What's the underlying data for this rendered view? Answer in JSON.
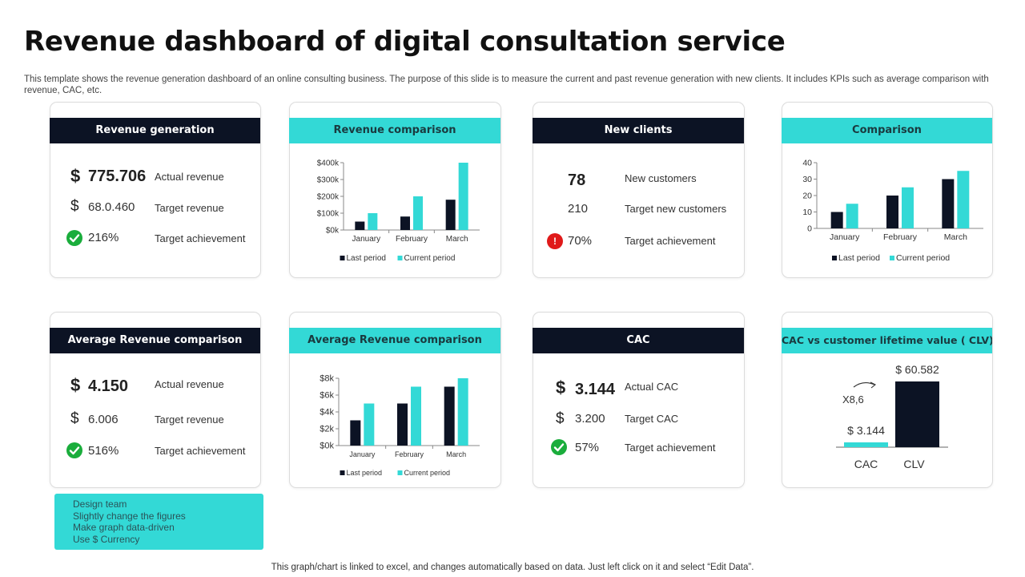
{
  "page": {
    "title": "Revenue dashboard of digital consultation service",
    "subtitle": "This template shows the revenue generation dashboard of an online consulting business. The purpose of this slide is to measure the current and past revenue generation with new clients. It includes KPIs such as average comparison with revenue, CAC, etc.",
    "footer": "This graph/chart is linked to excel, and changes automatically based on data. Just left click on it and select “Edit Data”."
  },
  "colors": {
    "dark": "#0c1324",
    "teal": "#33d9d6",
    "green": "#1aad3c",
    "red": "#e01a1a"
  },
  "revenue_generation": {
    "header": "Revenue generation",
    "actual_symbol": "$",
    "actual_value": "775.706",
    "actual_label": "Actual revenue",
    "target_symbol": "$",
    "target_value": "68.0.460",
    "target_label": "Target  revenue",
    "achievement_value": "216%",
    "achievement_label": "Target  achievement"
  },
  "new_clients": {
    "header": "New clients",
    "customers_value": "78",
    "customers_label": "New customers",
    "target_value": "210",
    "target_label": "Target  new customers",
    "alert_icon_text": "!",
    "achievement_value": "70%",
    "achievement_label": "Target  achievement"
  },
  "avg_revenue_kpi": {
    "header": "Average Revenue comparison",
    "actual_symbol": "$",
    "actual_value": "4.150",
    "actual_label": "Actual revenue",
    "target_symbol": "$",
    "target_value": "6.006",
    "target_label": "Target  revenue",
    "achievement_value": "516%",
    "achievement_label": "Target  achievement"
  },
  "cac": {
    "header": "CAC",
    "actual_symbol": "$",
    "actual_value": "3.144",
    "actual_label": "Actual CAC",
    "target_symbol": "$",
    "target_value": "3.200",
    "target_label": "Target  CAC",
    "achievement_value": "57%",
    "achievement_label": "Target  achievement"
  },
  "chart_headers": {
    "revenue_comparison": "Revenue comparison",
    "comparison": "Comparison",
    "avg_revenue_comparison": "Average Revenue comparison",
    "cac_vs_clv": "CAC vs customer lifetime value ( CLV)"
  },
  "note": {
    "lines": [
      "Design team",
      "Slightly change the figures",
      "Make graph data-driven",
      "Use $ Currency"
    ]
  },
  "chart_data": [
    {
      "id": "revenue_comparison",
      "type": "bar",
      "title": "Revenue comparison",
      "categories": [
        "January",
        "February",
        "March"
      ],
      "series": [
        {
          "name": "Last period",
          "values": [
            50,
            80,
            180
          ],
          "color": "#0c1324"
        },
        {
          "name": "Current period",
          "values": [
            100,
            200,
            400
          ],
          "color": "#33d9d6"
        }
      ],
      "ylim": [
        0,
        400
      ],
      "yticks": [
        0,
        100,
        200,
        300,
        400
      ],
      "ytick_labels": [
        "$0k",
        "$100k",
        "$200k",
        "$300k",
        "$400k"
      ],
      "legend": "bottom"
    },
    {
      "id": "comparison",
      "type": "bar",
      "title": "Comparison",
      "categories": [
        "January",
        "February",
        "March"
      ],
      "series": [
        {
          "name": "Last period",
          "values": [
            10,
            20,
            30
          ],
          "color": "#0c1324"
        },
        {
          "name": "Current period",
          "values": [
            15,
            25,
            35
          ],
          "color": "#33d9d6"
        }
      ],
      "ylim": [
        0,
        40
      ],
      "yticks": [
        0,
        10,
        20,
        30,
        40
      ],
      "ytick_labels": [
        "0",
        "10",
        "20",
        "30",
        "40"
      ],
      "legend": "bottom"
    },
    {
      "id": "avg_revenue_comparison",
      "type": "bar",
      "title": "Average Revenue comparison",
      "categories": [
        "January",
        "February",
        "March"
      ],
      "series": [
        {
          "name": "Last period",
          "values": [
            3,
            5,
            7
          ],
          "color": "#0c1324"
        },
        {
          "name": "Current period",
          "values": [
            5,
            7,
            8
          ],
          "color": "#33d9d6"
        }
      ],
      "ylim": [
        0,
        8
      ],
      "yticks": [
        0,
        2,
        4,
        6,
        8
      ],
      "ytick_labels": [
        "$0k",
        "$2k",
        "$4k",
        "$6k",
        "$8k"
      ],
      "legend": "bottom"
    },
    {
      "id": "cac_vs_clv",
      "type": "bar",
      "title": "CAC vs customer lifetime value ( CLV)",
      "categories": [
        "CAC",
        "CLV"
      ],
      "values": [
        3.144,
        60.582
      ],
      "value_labels": [
        "$ 3.144",
        "$ 60.582"
      ],
      "colors": [
        "#33d9d6",
        "#0c1324"
      ],
      "annotation": "X8,6"
    }
  ]
}
